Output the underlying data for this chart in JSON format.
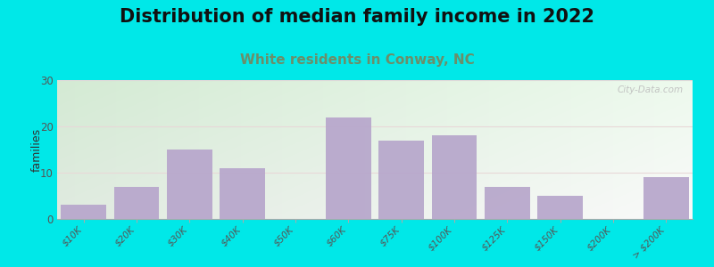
{
  "title": "Distribution of median family income in 2022",
  "subtitle": "White residents in Conway, NC",
  "categories": [
    "$10K",
    "$20K",
    "$30K",
    "$40K",
    "$50K",
    "$60K",
    "$75K",
    "$100K",
    "$125K",
    "$150K",
    "$200K",
    "> $200K"
  ],
  "values": [
    3,
    7,
    15,
    11,
    0,
    22,
    17,
    18,
    7,
    5,
    0,
    9
  ],
  "bar_color": "#b8a8cc",
  "background_color": "#00e8e8",
  "ylabel": "families",
  "ylim": [
    0,
    30
  ],
  "yticks": [
    0,
    10,
    20,
    30
  ],
  "title_fontsize": 15,
  "subtitle_fontsize": 11,
  "subtitle_color": "#6a8f6a",
  "tick_label_color": "#555555",
  "watermark": "City-Data.com",
  "watermark_color": "#bbbbbb"
}
